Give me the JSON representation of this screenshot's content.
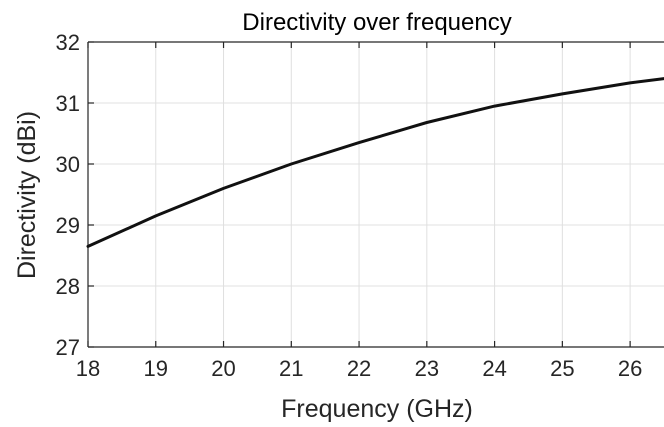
{
  "chart_data": {
    "type": "line",
    "title": "Directivity over frequency",
    "xlabel": "Frequency (GHz)",
    "ylabel": "Directivity (dBi)",
    "xlim": [
      18,
      26.5
    ],
    "ylim": [
      27,
      32
    ],
    "xticks": [
      18,
      19,
      20,
      21,
      22,
      23,
      24,
      25,
      26
    ],
    "yticks": [
      27,
      28,
      29,
      30,
      31,
      32
    ],
    "grid": true,
    "series": [
      {
        "color": "#111111",
        "x": [
          18,
          19,
          20,
          21,
          22,
          23,
          24,
          25,
          26,
          26.5
        ],
        "y": [
          28.65,
          29.15,
          29.6,
          30.0,
          30.35,
          30.68,
          30.95,
          31.15,
          31.33,
          31.4
        ]
      }
    ]
  }
}
